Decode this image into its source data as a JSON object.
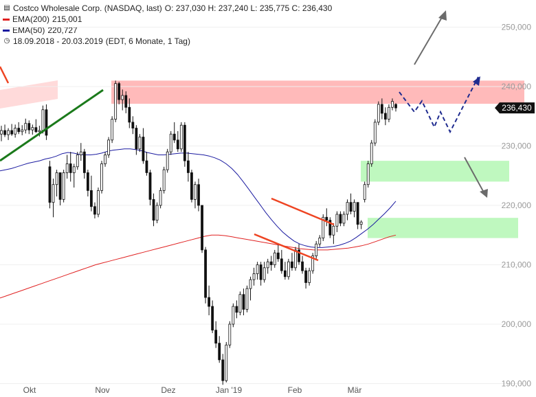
{
  "header": {
    "instrument": "Costco Wholesale Corp. (NASDAQ, last)",
    "ohlc": "O: 237,030   H: 237,240   L: 235,775   C: 236,430",
    "ema200_label": "EMA(200)",
    "ema200_value": "215,001",
    "ema50_label": "EMA(50)",
    "ema50_value": "220,727",
    "range": "18.09.2018 - 20.03.2019",
    "settings": "(EDT, 6 Monate, 1 Tag)"
  },
  "colors": {
    "ema200": "#e02020",
    "ema50": "#1a1aa0",
    "candle": "#111111",
    "trend_green": "#1b7a1b",
    "trend_red": "#ee4422",
    "projection": "#1f2b8f",
    "zone_red": "#ffb3b3",
    "zone_green": "#b8f7b8",
    "arrow_gray": "#6b6b6b"
  },
  "chart_data": {
    "type": "candlestick",
    "ylim": [
      186,
      255
    ],
    "y_ticks": [
      "190,000",
      "200,000",
      "210,000",
      "220,000",
      "230,000",
      "240,000",
      "250,000"
    ],
    "x_ticks": [
      "Okt",
      "Nov",
      "Dez",
      "Jan '19",
      "Feb",
      "Mär"
    ],
    "last_price_label": "236,430",
    "candles": [
      [
        232.0,
        233.4,
        230.8,
        232.6
      ],
      [
        232.6,
        233.6,
        231.5,
        231.9
      ],
      [
        231.9,
        233.0,
        231.0,
        232.6
      ],
      [
        232.6,
        233.7,
        231.7,
        232.0
      ],
      [
        232.0,
        233.6,
        231.4,
        233.0
      ],
      [
        233.0,
        234.0,
        232.0,
        232.4
      ],
      [
        232.4,
        233.5,
        231.8,
        232.7
      ],
      [
        232.7,
        234.6,
        232.1,
        233.8
      ],
      [
        233.8,
        234.3,
        232.0,
        232.7
      ],
      [
        232.7,
        233.6,
        231.9,
        233.1
      ],
      [
        233.1,
        234.5,
        232.2,
        232.4
      ],
      [
        232.4,
        233.4,
        231.6,
        232.6
      ],
      [
        232.6,
        236.8,
        232.1,
        236.1
      ],
      [
        236.1,
        237.0,
        231.0,
        231.8
      ],
      [
        226.5,
        227.5,
        219.5,
        220.5
      ],
      [
        220.5,
        224.5,
        218.0,
        223.5
      ],
      [
        223.5,
        226.0,
        221.5,
        225.5
      ],
      [
        225.5,
        225.5,
        220.0,
        221.0
      ],
      [
        221.0,
        226.0,
        220.5,
        225.5
      ],
      [
        225.5,
        228.5,
        224.5,
        227.0
      ],
      [
        227.0,
        229.0,
        224.0,
        225.5
      ],
      [
        225.5,
        227.0,
        223.0,
        226.5
      ],
      [
        226.5,
        229.0,
        226.0,
        228.5
      ],
      [
        228.5,
        230.5,
        227.5,
        229.0
      ],
      [
        229.0,
        229.5,
        224.5,
        225.5
      ],
      [
        225.5,
        226.0,
        221.5,
        222.5
      ],
      [
        222.5,
        225.0,
        219.0,
        219.8
      ],
      [
        219.8,
        220.5,
        217.8,
        218.5
      ],
      [
        218.5,
        223.0,
        218.0,
        222.5
      ],
      [
        222.5,
        227.5,
        222.0,
        227.0
      ],
      [
        227.0,
        229.0,
        226.5,
        228.5
      ],
      [
        228.5,
        231.5,
        228.0,
        231.0
      ],
      [
        231.0,
        235.0,
        230.5,
        234.5
      ],
      [
        234.5,
        241.0,
        234.0,
        240.5
      ],
      [
        240.5,
        240.8,
        237.0,
        237.8
      ],
      [
        237.8,
        239.5,
        236.0,
        238.5
      ],
      [
        238.5,
        239.2,
        235.5,
        236.5
      ],
      [
        236.5,
        238.0,
        233.0,
        234.0
      ],
      [
        234.0,
        235.0,
        232.0,
        233.0
      ],
      [
        233.0,
        233.5,
        228.5,
        229.5
      ],
      [
        229.5,
        232.0,
        229.0,
        231.5
      ],
      [
        231.5,
        233.0,
        227.0,
        227.5
      ],
      [
        227.5,
        229.0,
        225.0,
        225.5
      ],
      [
        225.5,
        226.0,
        220.0,
        221.0
      ],
      [
        221.0,
        222.0,
        216.5,
        217.5
      ],
      [
        217.5,
        220.5,
        217.0,
        220.0
      ],
      [
        220.0,
        223.0,
        219.5,
        222.5
      ],
      [
        222.5,
        226.5,
        222.0,
        226.0
      ],
      [
        226.0,
        229.5,
        225.5,
        229.0
      ],
      [
        229.0,
        232.5,
        228.5,
        232.0
      ],
      [
        232.0,
        234.0,
        230.5,
        231.0
      ],
      [
        231.0,
        232.5,
        229.0,
        229.5
      ],
      [
        229.5,
        234.0,
        229.0,
        233.5
      ],
      [
        233.5,
        234.0,
        226.5,
        227.5
      ],
      [
        227.5,
        229.0,
        224.0,
        225.5
      ],
      [
        225.5,
        226.0,
        220.5,
        221.0
      ],
      [
        221.0,
        224.0,
        219.5,
        223.5
      ],
      [
        223.5,
        224.5,
        219.0,
        220.0
      ],
      [
        220.0,
        219.5,
        212.0,
        212.5
      ],
      [
        212.5,
        213.0,
        203.5,
        204.5
      ],
      [
        204.5,
        206.5,
        201.5,
        203.0
      ],
      [
        203.0,
        204.0,
        198.5,
        199.0
      ],
      [
        199.0,
        200.5,
        196.0,
        196.8
      ],
      [
        196.8,
        198.0,
        193.5,
        194.0
      ],
      [
        194.0,
        195.0,
        189.8,
        190.5
      ],
      [
        190.5,
        197.0,
        190.2,
        196.5
      ],
      [
        196.5,
        200.5,
        196.0,
        200.0
      ],
      [
        200.0,
        203.5,
        199.5,
        203.0
      ],
      [
        203.0,
        204.0,
        201.0,
        202.0
      ],
      [
        202.0,
        205.5,
        201.5,
        205.0
      ],
      [
        205.0,
        206.0,
        201.5,
        202.5
      ],
      [
        202.5,
        206.5,
        202.0,
        206.0
      ],
      [
        206.0,
        208.0,
        204.0,
        207.5
      ],
      [
        207.5,
        209.5,
        206.5,
        208.5
      ],
      [
        208.5,
        210.5,
        207.5,
        210.0
      ],
      [
        210.0,
        210.5,
        206.5,
        207.5
      ],
      [
        207.5,
        210.5,
        207.0,
        209.5
      ],
      [
        209.5,
        211.0,
        208.5,
        210.5
      ],
      [
        210.5,
        211.5,
        209.0,
        210.0
      ],
      [
        210.0,
        212.5,
        209.5,
        212.0
      ],
      [
        212.0,
        213.5,
        210.5,
        211.0
      ],
      [
        211.0,
        212.5,
        208.5,
        209.0
      ],
      [
        209.0,
        210.5,
        207.5,
        208.0
      ],
      [
        208.0,
        211.0,
        207.5,
        210.5
      ],
      [
        210.5,
        212.0,
        209.0,
        209.5
      ],
      [
        209.5,
        213.0,
        209.0,
        212.5
      ],
      [
        212.5,
        213.5,
        210.0,
        210.5
      ],
      [
        210.5,
        211.5,
        208.5,
        209.0
      ],
      [
        209.0,
        209.5,
        206.0,
        207.0
      ],
      [
        207.0,
        209.5,
        206.5,
        209.0
      ],
      [
        209.0,
        212.0,
        208.5,
        211.5
      ],
      [
        211.5,
        214.0,
        211.0,
        213.5
      ],
      [
        213.5,
        215.0,
        213.0,
        214.5
      ],
      [
        214.5,
        218.5,
        214.0,
        218.0
      ],
      [
        218.0,
        219.5,
        216.5,
        217.5
      ],
      [
        217.5,
        218.0,
        214.5,
        215.0
      ],
      [
        215.0,
        217.0,
        213.5,
        216.5
      ],
      [
        216.5,
        219.0,
        215.5,
        218.5
      ],
      [
        218.5,
        219.0,
        216.5,
        217.0
      ],
      [
        217.0,
        219.0,
        216.5,
        218.5
      ],
      [
        218.5,
        221.0,
        217.5,
        220.5
      ],
      [
        220.5,
        222.0,
        218.5,
        219.0
      ],
      [
        219.0,
        221.0,
        218.0,
        220.5
      ],
      [
        220.5,
        220.5,
        216.0,
        216.8
      ],
      [
        216.8,
        217.5,
        216.0,
        217.2
      ],
      [
        221.0,
        224.0,
        220.5,
        223.5
      ],
      [
        223.5,
        227.5,
        223.0,
        227.0
      ],
      [
        227.0,
        231.0,
        226.5,
        230.5
      ],
      [
        230.5,
        234.5,
        230.0,
        234.0
      ],
      [
        234.0,
        237.5,
        233.5,
        237.0
      ],
      [
        237.0,
        238.0,
        234.5,
        235.5
      ],
      [
        235.5,
        236.5,
        233.5,
        234.5
      ],
      [
        234.5,
        237.0,
        234.0,
        236.5
      ],
      [
        236.5,
        238.0,
        236.0,
        237.5
      ],
      [
        237.0,
        237.2,
        235.8,
        236.4
      ]
    ],
    "ema50": [
      225.8,
      226.0,
      226.2,
      226.5,
      226.8,
      227.1,
      227.3,
      227.5,
      227.8,
      228.0,
      228.3,
      228.7,
      228.9,
      228.8,
      228.6,
      228.5,
      228.5,
      228.6,
      228.8,
      229.1,
      229.3,
      229.4,
      229.5,
      229.5,
      229.4,
      229.2,
      228.9,
      228.7,
      228.5,
      228.5,
      228.6,
      228.7,
      228.8,
      228.8,
      228.7,
      228.6,
      228.5,
      228.3,
      228.0,
      227.6,
      227.0,
      226.2,
      225.2,
      224.0,
      222.7,
      221.4,
      220.1,
      218.8,
      217.6,
      216.5,
      215.5,
      214.7,
      214.0,
      213.5,
      213.2,
      213.0,
      212.9,
      212.9,
      213.0,
      213.1,
      213.3,
      213.6,
      214.0,
      214.6,
      215.3,
      216.0,
      216.8,
      217.7,
      218.6,
      219.6,
      220.7
    ],
    "ema200": [
      204.4,
      204.8,
      205.2,
      205.6,
      206.0,
      206.4,
      206.8,
      207.2,
      207.6,
      208.0,
      208.4,
      208.8,
      209.2,
      209.6,
      210.0,
      210.3,
      210.6,
      210.9,
      211.2,
      211.5,
      211.8,
      212.1,
      212.4,
      212.7,
      213.0,
      213.3,
      213.6,
      213.9,
      214.2,
      214.5,
      214.8,
      215.0,
      215.0,
      214.9,
      214.7,
      214.5,
      214.3,
      214.1,
      213.9,
      213.7,
      213.5,
      213.3,
      213.1,
      212.9,
      212.7,
      212.6,
      212.5,
      212.5,
      212.5,
      212.6,
      212.7,
      212.8,
      213.0,
      213.2,
      213.5,
      213.9,
      214.3,
      214.7,
      215.0
    ],
    "zones": [
      {
        "kind": "resistance",
        "y_from": 237.1,
        "y_to": 241.0
      },
      {
        "kind": "support",
        "y_from": 224.0,
        "y_to": 227.5
      },
      {
        "kind": "support",
        "y_from": 214.5,
        "y_to": 217.9
      }
    ]
  }
}
